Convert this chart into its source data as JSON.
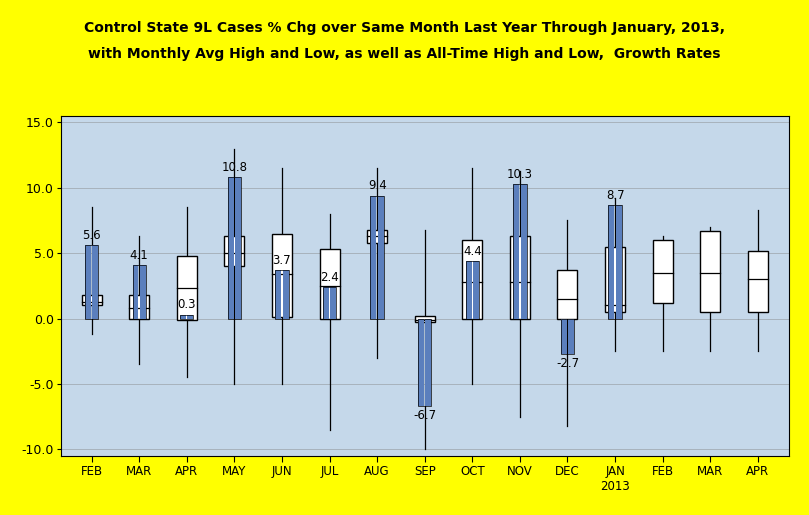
{
  "title_line1": "Control State 9L Cases % Chg over Same Month Last Year Through January, 2013,",
  "title_line2": "with Monthly Avg High and Low, as well as All-Time High and Low,  Growth Rates",
  "background_outer": "#FFFF00",
  "background_plot": "#C5D8EA",
  "bar_color": "#5B7FBD",
  "box_color": "#FFFFFF",
  "ylim": [
    -10.5,
    15.5
  ],
  "yticks": [
    -10.0,
    -5.0,
    0.0,
    5.0,
    10.0,
    15.0
  ],
  "months": [
    "FEB",
    "MAR",
    "APR",
    "MAY",
    "JUN",
    "JUL",
    "AUG",
    "SEP",
    "OCT",
    "NOV",
    "DEC",
    "JAN\n2013",
    "FEB",
    "MAR",
    "APR"
  ],
  "bar_values": [
    5.6,
    4.1,
    0.3,
    10.8,
    3.7,
    2.4,
    9.4,
    -6.7,
    4.4,
    10.3,
    -2.7,
    8.7,
    null,
    null,
    null
  ],
  "bar_labels": [
    "5.6",
    "4.1",
    "0.3",
    "10.8",
    "3.7",
    "2.4",
    "9.4",
    "-6.7",
    "4.4",
    "10.3",
    "-2.7",
    "8.7",
    null,
    null,
    null
  ],
  "box_low": [
    1.0,
    0.0,
    -0.1,
    4.0,
    0.1,
    0.0,
    5.8,
    -0.3,
    0.0,
    0.0,
    0.0,
    0.5,
    1.2,
    0.5,
    0.5
  ],
  "box_high": [
    1.8,
    1.8,
    4.8,
    6.3,
    6.5,
    5.3,
    6.8,
    0.2,
    6.0,
    6.3,
    3.7,
    5.5,
    6.0,
    6.7,
    5.2
  ],
  "box_mid": [
    1.3,
    0.8,
    2.3,
    5.0,
    3.4,
    2.5,
    6.3,
    -0.1,
    2.8,
    2.8,
    1.5,
    1.0,
    3.5,
    3.5,
    3.0
  ],
  "whisker_high": [
    8.5,
    6.3,
    8.5,
    13.0,
    11.5,
    8.0,
    11.5,
    6.8,
    11.5,
    11.3,
    7.5,
    9.2,
    6.3,
    7.0,
    8.3
  ],
  "whisker_low": [
    -1.2,
    -3.5,
    -4.5,
    -5.0,
    -5.0,
    -8.5,
    -3.0,
    -10.0,
    -5.0,
    -7.5,
    -8.2,
    -2.5,
    -2.5,
    -2.5,
    -2.5
  ],
  "bar_width": 0.28,
  "box_width": 0.42
}
